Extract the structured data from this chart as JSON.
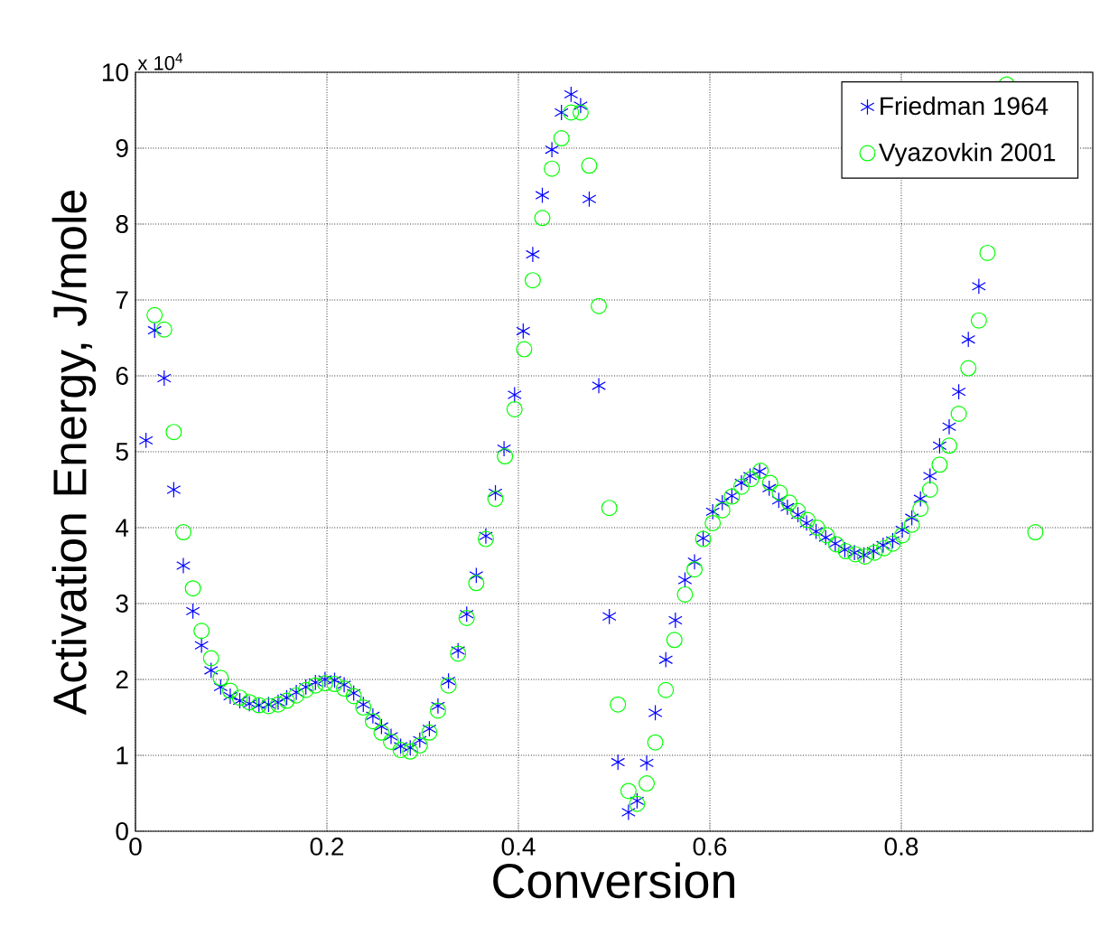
{
  "chart_data": {
    "type": "scatter",
    "xlabel": "Conversion",
    "ylabel": "Activation Energy, J/mole",
    "annotations": [
      "x 10$^{4}$"
    ],
    "xlim": [
      0,
      1
    ],
    "ylim": [
      0,
      10
    ],
    "xticks": [
      0,
      0.2,
      0.4,
      0.6,
      0.8
    ],
    "yticks": [
      0,
      1,
      2,
      3,
      4,
      5,
      6,
      7,
      8,
      9,
      10
    ],
    "grid": true,
    "legend": "top right",
    "series": [
      {
        "name": "Friedman 1964",
        "color": "#0000ff",
        "marker": "cross",
        "x": [
          0.011,
          0.02,
          0.03,
          0.04,
          0.05,
          0.06,
          0.069,
          0.079,
          0.089,
          0.099,
          0.109,
          0.119,
          0.129,
          0.139,
          0.149,
          0.158,
          0.168,
          0.178,
          0.188,
          0.198,
          0.208,
          0.218,
          0.228,
          0.238,
          0.248,
          0.257,
          0.267,
          0.277,
          0.287,
          0.297,
          0.307,
          0.316,
          0.327,
          0.337,
          0.346,
          0.356,
          0.366,
          0.376,
          0.385,
          0.396,
          0.405,
          0.415,
          0.425,
          0.435,
          0.445,
          0.455,
          0.465,
          0.474,
          0.484,
          0.495,
          0.504,
          0.515,
          0.524,
          0.534,
          0.543,
          0.554,
          0.564,
          0.574,
          0.584,
          0.593,
          0.603,
          0.613,
          0.623,
          0.633,
          0.642,
          0.652,
          0.662,
          0.672,
          0.681,
          0.692,
          0.701,
          0.711,
          0.721,
          0.731,
          0.741,
          0.751,
          0.761,
          0.771,
          0.781,
          0.791,
          0.801,
          0.811,
          0.82,
          0.83,
          0.84,
          0.85,
          0.86,
          0.87,
          0.881
        ],
        "values": [
          5.15,
          6.6,
          5.97,
          4.5,
          3.5,
          2.9,
          2.45,
          2.12,
          1.9,
          1.78,
          1.72,
          1.68,
          1.66,
          1.67,
          1.7,
          1.76,
          1.83,
          1.9,
          1.96,
          2.0,
          1.99,
          1.93,
          1.82,
          1.67,
          1.52,
          1.38,
          1.25,
          1.12,
          1.1,
          1.2,
          1.35,
          1.65,
          1.98,
          2.38,
          2.86,
          3.37,
          3.89,
          4.46,
          5.04,
          5.75,
          6.59,
          7.6,
          8.38,
          8.98,
          9.47,
          9.71,
          9.56,
          8.33,
          5.87,
          2.83,
          0.91,
          0.25,
          0.4,
          0.9,
          1.56,
          2.26,
          2.78,
          3.31,
          3.55,
          3.86,
          4.21,
          4.33,
          4.42,
          4.59,
          4.68,
          4.74,
          4.52,
          4.36,
          4.27,
          4.17,
          4.06,
          3.95,
          3.87,
          3.79,
          3.71,
          3.67,
          3.64,
          3.69,
          3.77,
          3.83,
          3.97,
          4.13,
          4.38,
          4.68,
          5.08,
          5.33,
          5.79,
          6.48,
          7.18
        ]
      },
      {
        "name": "Vyazovkin 2001",
        "color": "#00ff00",
        "marker": "circle",
        "x": [
          0.02,
          0.03,
          0.04,
          0.05,
          0.06,
          0.069,
          0.079,
          0.089,
          0.099,
          0.109,
          0.119,
          0.129,
          0.139,
          0.149,
          0.158,
          0.168,
          0.178,
          0.188,
          0.198,
          0.208,
          0.218,
          0.228,
          0.238,
          0.248,
          0.257,
          0.267,
          0.277,
          0.287,
          0.297,
          0.307,
          0.316,
          0.327,
          0.337,
          0.346,
          0.356,
          0.366,
          0.376,
          0.386,
          0.396,
          0.406,
          0.415,
          0.425,
          0.435,
          0.445,
          0.455,
          0.465,
          0.474,
          0.484,
          0.495,
          0.504,
          0.515,
          0.524,
          0.534,
          0.543,
          0.554,
          0.563,
          0.574,
          0.584,
          0.593,
          0.603,
          0.613,
          0.623,
          0.633,
          0.643,
          0.653,
          0.663,
          0.673,
          0.683,
          0.692,
          0.702,
          0.712,
          0.722,
          0.732,
          0.742,
          0.752,
          0.762,
          0.772,
          0.782,
          0.791,
          0.801,
          0.811,
          0.82,
          0.83,
          0.84,
          0.85,
          0.86,
          0.87,
          0.881,
          0.89,
          0.91,
          0.94
        ],
        "values": [
          6.8,
          6.61,
          5.26,
          3.94,
          3.2,
          2.64,
          2.28,
          2.02,
          1.85,
          1.76,
          1.7,
          1.66,
          1.65,
          1.67,
          1.72,
          1.79,
          1.86,
          1.92,
          1.95,
          1.94,
          1.88,
          1.78,
          1.63,
          1.45,
          1.3,
          1.18,
          1.07,
          1.05,
          1.13,
          1.3,
          1.59,
          1.92,
          2.34,
          2.81,
          3.27,
          3.85,
          4.38,
          4.94,
          5.56,
          6.35,
          7.26,
          8.08,
          8.73,
          9.13,
          9.47,
          9.47,
          8.77,
          6.92,
          4.26,
          1.67,
          0.53,
          0.36,
          0.63,
          1.17,
          1.86,
          2.52,
          3.12,
          3.45,
          3.85,
          4.06,
          4.23,
          4.41,
          4.54,
          4.64,
          4.75,
          4.59,
          4.46,
          4.33,
          4.22,
          4.1,
          4.0,
          3.9,
          3.78,
          3.69,
          3.65,
          3.62,
          3.67,
          3.73,
          3.79,
          3.9,
          4.04,
          4.25,
          4.5,
          4.83,
          5.08,
          5.5,
          6.1,
          6.73,
          7.62,
          9.84,
          3.94
        ]
      }
    ]
  }
}
